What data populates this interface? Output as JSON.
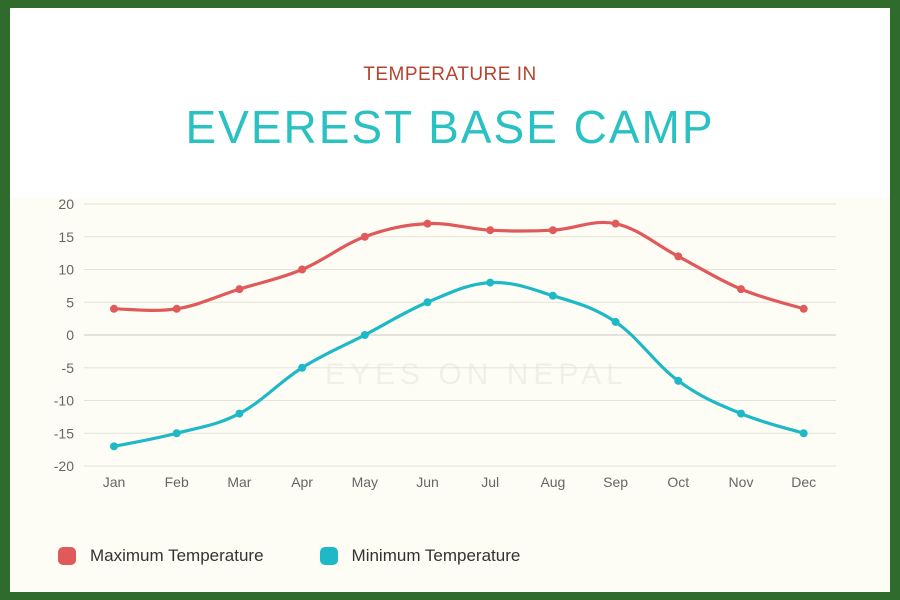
{
  "header": {
    "subtitle": "TEMPERATURE IN",
    "title": "EVEREST BASE CAMP"
  },
  "watermark": "EYES ON NEPAL",
  "colors": {
    "max": "#e05a5b",
    "min": "#1eb8c6",
    "subtitle": "#b5442e",
    "title": "#2ac1c3"
  },
  "chart_data": {
    "type": "line",
    "title": "TEMPERATURE IN EVEREST BASE CAMP",
    "xlabel": "",
    "ylabel": "",
    "ylim": [
      -20,
      20
    ],
    "yticks": [
      20,
      15,
      10,
      5,
      0,
      -5,
      -10,
      -15,
      -20
    ],
    "grid": true,
    "legend_position": "bottom-left",
    "categories": [
      "Jan",
      "Feb",
      "Mar",
      "Apr",
      "May",
      "Jun",
      "Jul",
      "Aug",
      "Sep",
      "Oct",
      "Nov",
      "Dec"
    ],
    "series": [
      {
        "name": "Maximum Temperature",
        "color": "#e05a5b",
        "values": [
          4,
          4,
          7,
          10,
          15,
          17,
          16,
          16,
          17,
          12,
          7,
          4
        ]
      },
      {
        "name": "Minimum Temperature",
        "color": "#1eb8c6",
        "values": [
          -17,
          -15,
          -12,
          -5,
          0,
          5,
          8,
          6,
          2,
          -7,
          -12,
          -15
        ]
      }
    ]
  }
}
